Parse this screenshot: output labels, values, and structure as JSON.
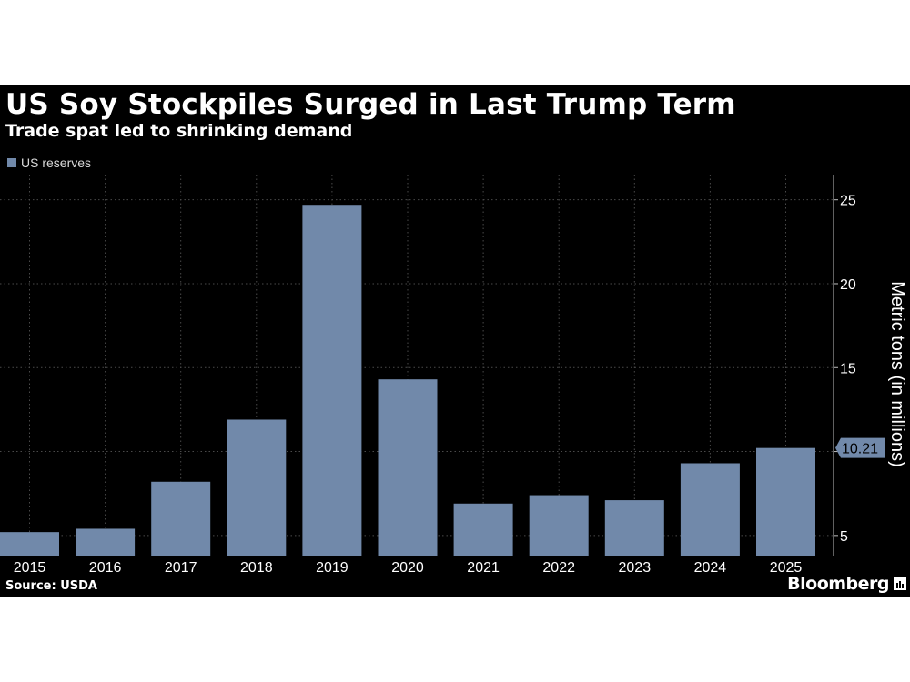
{
  "header": {
    "title": "US Soy Stockpiles Surged in Last Trump Term",
    "subtitle": "Trade spat led to shrinking demand"
  },
  "legend": {
    "label": "US reserves"
  },
  "footer": {
    "source": "Source: USDA",
    "brand": "Bloomberg"
  },
  "icons": {
    "brand_icon": "bloomberg-bars-icon"
  },
  "colors": {
    "background": "#000000",
    "bar": "#7189aa",
    "text": "#ffffff",
    "grid": "#4a4a4a"
  },
  "chart_data": {
    "type": "bar",
    "categories": [
      "2015",
      "2016",
      "2017",
      "2018",
      "2019",
      "2020",
      "2021",
      "2022",
      "2023",
      "2024",
      "2025"
    ],
    "series": [
      {
        "name": "US reserves",
        "values": [
          5.2,
          5.4,
          8.2,
          11.9,
          24.7,
          14.3,
          6.9,
          7.4,
          7.1,
          9.3,
          10.21
        ]
      }
    ],
    "ylabel": "Metric tons (in millions)",
    "ylim": [
      3.8,
      26.5
    ],
    "yticks": [
      5,
      10,
      15,
      20,
      25
    ],
    "ytick_labels": [
      "5",
      "",
      "15",
      "20",
      "25"
    ],
    "y_axis_position": "right",
    "grid": true,
    "legend_position": "top-left",
    "callout": {
      "category": "2025",
      "value": 10.21,
      "label": "10.21"
    }
  }
}
